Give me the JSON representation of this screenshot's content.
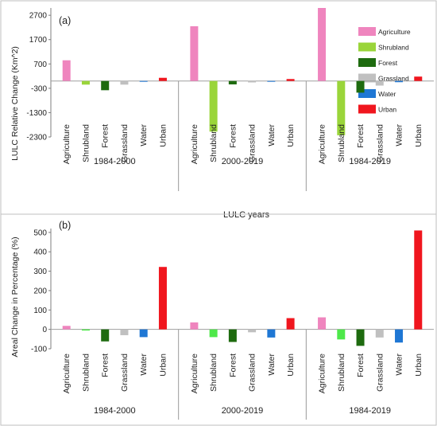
{
  "chart_data": [
    {
      "type": "bar",
      "panel_label": "(a)",
      "ylabel": "LULC Relative Change (Km^2)",
      "xlabel": "LULC years",
      "ylim": [
        -2300,
        3000
      ],
      "yticks": [
        "2700",
        "1700",
        "700",
        "-300",
        "-1300",
        "-2300"
      ],
      "ytick_values": [
        2700,
        1700,
        700,
        -300,
        -1300,
        -2300
      ],
      "categories": [
        "Agriculture",
        "Shrubland",
        "Forest",
        "Grassland",
        "Water",
        "Urban"
      ],
      "groups": [
        "1984-2000",
        "2000-2019",
        "1984-2019"
      ],
      "values": [
        [
          850,
          -150,
          -380,
          -150,
          -30,
          130
        ],
        [
          2250,
          -2080,
          -140,
          -60,
          -20,
          80
        ],
        [
          3000,
          -2230,
          -480,
          -190,
          -50,
          180
        ]
      ],
      "legend": {
        "position": "top-right",
        "entries": [
          "Agriculture",
          "Shrubland",
          "Forest",
          "Grassland",
          "Water",
          "Urban"
        ]
      }
    },
    {
      "type": "bar",
      "panel_label": "(b)",
      "ylabel": "Areal Change in Percentage (%)",
      "ylim": [
        -100,
        520
      ],
      "yticks": [
        "500",
        "400",
        "300",
        "200",
        "100",
        "0",
        "-100"
      ],
      "ytick_values": [
        500,
        400,
        300,
        200,
        100,
        0,
        -100
      ],
      "categories": [
        "Agriculture",
        "Shrubland",
        "Forest",
        "Grassland",
        "Water",
        "Urban"
      ],
      "groups": [
        "1984-2000",
        "2000-2019",
        "1984-2019"
      ],
      "values": [
        [
          18,
          -6,
          -62,
          -30,
          -40,
          322
        ],
        [
          36,
          -40,
          -65,
          -15,
          -42,
          58
        ],
        [
          62,
          -52,
          -85,
          -42,
          -68,
          510
        ]
      ]
    }
  ],
  "colors": {
    "Agriculture": "#ef85be",
    "Shrubland_a": "#9ad53a",
    "Shrubland_b": "#4ee84a",
    "Forest": "#1e6b0f",
    "Grassland": "#c0c0c0",
    "Water": "#1f77d4",
    "Urban": "#f0161e",
    "frame": "#bfbfbf",
    "separator": "#9a9a9a"
  }
}
